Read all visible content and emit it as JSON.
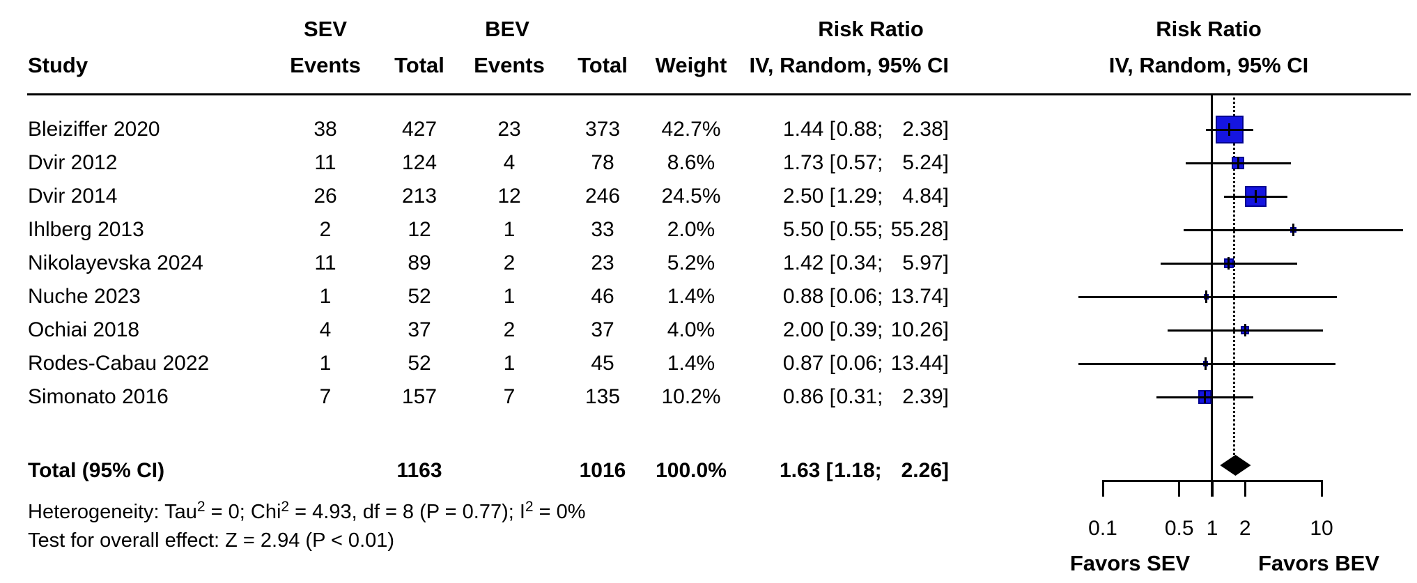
{
  "header": {
    "study": "Study",
    "sev": "SEV",
    "bev": "BEV",
    "sev_events": "Events",
    "sev_total": "Total",
    "bev_events": "Events",
    "bev_total": "Total",
    "weight": "Weight",
    "rr_col_title": "Risk Ratio",
    "rr_col_subtitle": "IV, Random, 95% CI",
    "plot_col_title": "Risk Ratio",
    "plot_col_subtitle": "IV, Random, 95% CI"
  },
  "footer": {
    "het_p1": "Heterogeneity: Tau",
    "het_s1": "2",
    "het_p2": " = 0; Chi",
    "het_s2": "2",
    "het_p3": " = 4.93, df = 8 (P = 0.77); I",
    "het_s3": "2",
    "het_p4": " = 0%",
    "overall": "Test for overall effect: Z = 2.94 (P < 0.01)"
  },
  "axis": {
    "favors_left": "Favors SEV",
    "favors_right": "Favors BEV"
  },
  "colors": {
    "square_fill": "#1515e0",
    "square_border": "#000090",
    "line": "#000000",
    "diamond": "#000000",
    "background": "#ffffff"
  },
  "chart_data": {
    "type": "scatter",
    "subtype": "forest-plot",
    "title": "Risk Ratio",
    "model": "IV, Random, 95% CI",
    "x_scale": "log",
    "x_ticks": [
      0.1,
      0.5,
      1,
      2,
      10
    ],
    "reference_value": 1,
    "favors": [
      "Favors SEV",
      "Favors BEV"
    ],
    "studies": [
      {
        "study": "Bleiziffer 2020",
        "sev_events": 38,
        "sev_total": 427,
        "bev_events": 23,
        "bev_total": 373,
        "weight_pct": 42.7,
        "rr": 1.44,
        "ci_low": 0.88,
        "ci_high": 2.38
      },
      {
        "study": "Dvir 2012",
        "sev_events": 11,
        "sev_total": 124,
        "bev_events": 4,
        "bev_total": 78,
        "weight_pct": 8.6,
        "rr": 1.73,
        "ci_low": 0.57,
        "ci_high": 5.24
      },
      {
        "study": "Dvir 2014",
        "sev_events": 26,
        "sev_total": 213,
        "bev_events": 12,
        "bev_total": 246,
        "weight_pct": 24.5,
        "rr": 2.5,
        "ci_low": 1.29,
        "ci_high": 4.84
      },
      {
        "study": "Ihlberg 2013",
        "sev_events": 2,
        "sev_total": 12,
        "bev_events": 1,
        "bev_total": 33,
        "weight_pct": 2.0,
        "rr": 5.5,
        "ci_low": 0.55,
        "ci_high": 55.28
      },
      {
        "study": "Nikolayevska 2024",
        "sev_events": 11,
        "sev_total": 89,
        "bev_events": 2,
        "bev_total": 23,
        "weight_pct": 5.2,
        "rr": 1.42,
        "ci_low": 0.34,
        "ci_high": 5.97
      },
      {
        "study": "Nuche 2023",
        "sev_events": 1,
        "sev_total": 52,
        "bev_events": 1,
        "bev_total": 46,
        "weight_pct": 1.4,
        "rr": 0.88,
        "ci_low": 0.06,
        "ci_high": 13.74
      },
      {
        "study": "Ochiai 2018",
        "sev_events": 4,
        "sev_total": 37,
        "bev_events": 2,
        "bev_total": 37,
        "weight_pct": 4.0,
        "rr": 2.0,
        "ci_low": 0.39,
        "ci_high": 10.26
      },
      {
        "study": "Rodes-Cabau 2022",
        "sev_events": 1,
        "sev_total": 52,
        "bev_events": 1,
        "bev_total": 45,
        "weight_pct": 1.4,
        "rr": 0.87,
        "ci_low": 0.06,
        "ci_high": 13.44
      },
      {
        "study": "Simonato 2016",
        "sev_events": 7,
        "sev_total": 157,
        "bev_events": 7,
        "bev_total": 135,
        "weight_pct": 10.2,
        "rr": 0.86,
        "ci_low": 0.31,
        "ci_high": 2.39
      }
    ],
    "total": {
      "label": "Total (95% CI)",
      "sev_total": 1163,
      "bev_total": 1016,
      "weight_pct": 100.0,
      "rr": 1.63,
      "ci_low": 1.18,
      "ci_high": 2.26
    },
    "heterogeneity": "Tau2 = 0; Chi2 = 4.93, df = 8 (P = 0.77); I2 = 0%",
    "overall_effect": "Z = 2.94 (P < 0.01)"
  }
}
